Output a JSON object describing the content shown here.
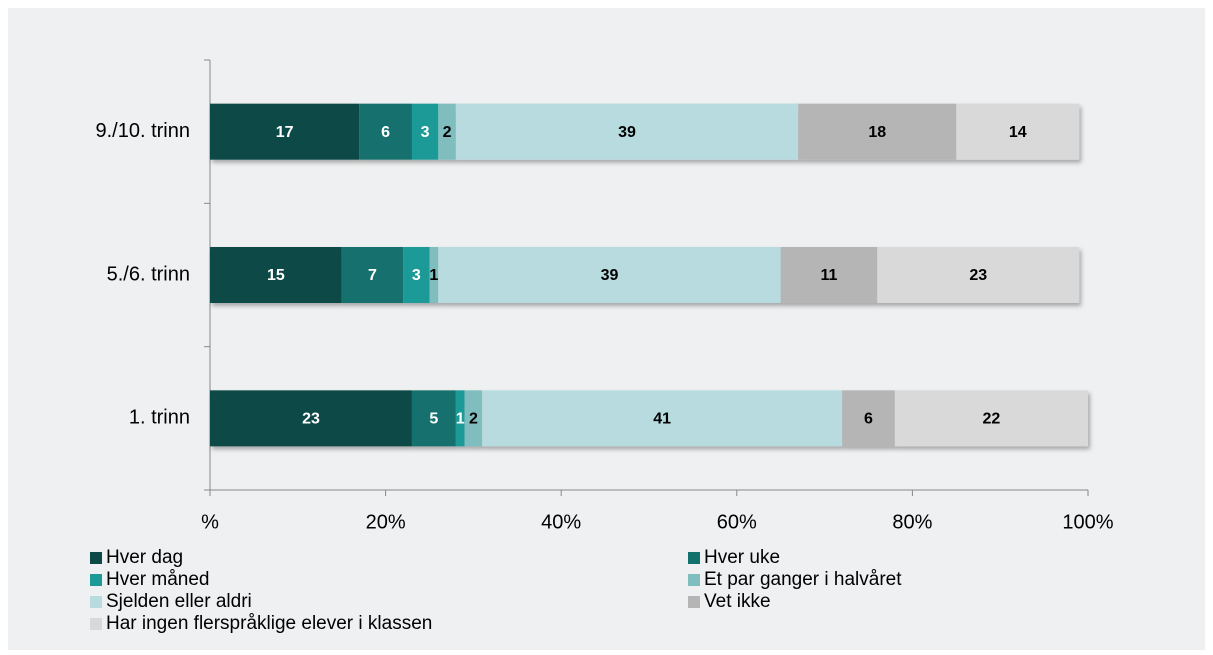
{
  "chart_data": {
    "type": "stacked-barh",
    "categories": [
      "9./10. trinn",
      "5./6. trinn",
      "1. trinn"
    ],
    "series": [
      {
        "name": "Hver dag",
        "color": "#0d4a47",
        "values": [
          17,
          15,
          23
        ]
      },
      {
        "name": "Hver uke",
        "color": "#12706d",
        "values": [
          6,
          7,
          5
        ]
      },
      {
        "name": "Hver måned",
        "color": "#1b9a98",
        "values": [
          3,
          3,
          1
        ]
      },
      {
        "name": "Et par ganger i halvåret",
        "color": "#7fbdbe",
        "values": [
          2,
          1,
          2
        ]
      },
      {
        "name": "Sjelden eller aldri",
        "color": "#b8dbdf",
        "values": [
          39,
          39,
          41
        ]
      },
      {
        "name": "Vet ikke",
        "color": "#b5b5b5",
        "values": [
          18,
          11,
          6
        ]
      },
      {
        "name": "Har ingen flerspråklige elever i klassen",
        "color": "#d9d9d9",
        "values": [
          14,
          23,
          22
        ]
      }
    ],
    "xlim": [
      0,
      100
    ],
    "xticks": [
      {
        "value": 0,
        "label": "%"
      },
      {
        "value": 20,
        "label": "20%"
      },
      {
        "value": 40,
        "label": "40%"
      },
      {
        "value": 60,
        "label": "60%"
      },
      {
        "value": 80,
        "label": "80%"
      },
      {
        "value": 100,
        "label": "100%"
      }
    ],
    "legend": "bottom"
  }
}
